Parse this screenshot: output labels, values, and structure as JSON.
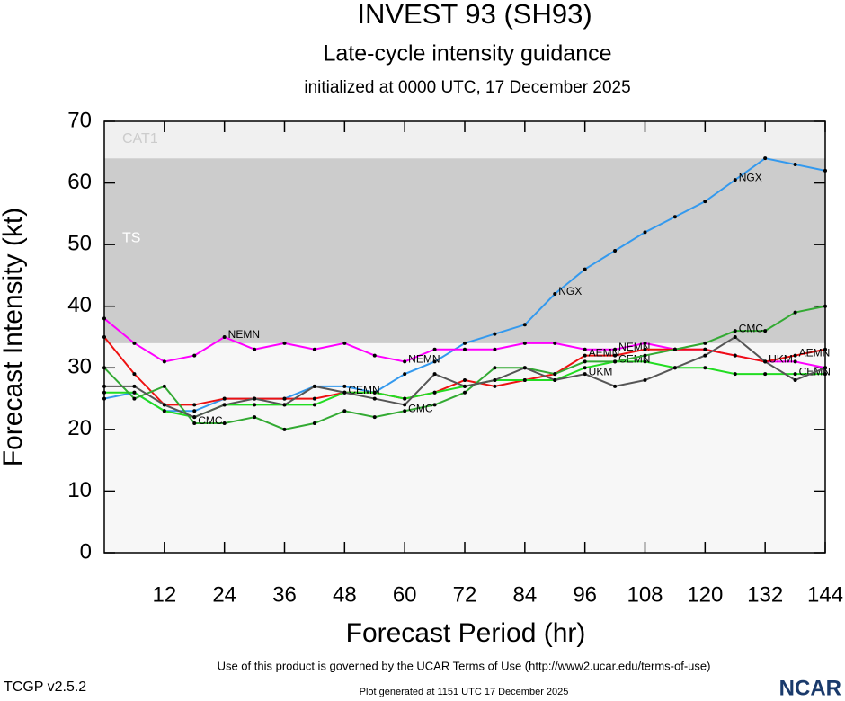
{
  "chart_data": {
    "type": "line",
    "title": "INVEST 93 (SH93)",
    "subtitle": "Late-cycle intensity guidance",
    "initialized": "initialized at 0000 UTC, 17 December 2025",
    "x_label": "Forecast Period (hr)",
    "y_label": "Forecast Intensity (kt)",
    "xlim": [
      0,
      144
    ],
    "ylim": [
      0,
      70
    ],
    "xticks": [
      12,
      24,
      36,
      48,
      60,
      72,
      84,
      96,
      108,
      120,
      132,
      144
    ],
    "yticks": [
      0,
      10,
      20,
      30,
      40,
      50,
      60,
      70
    ],
    "bands": [
      {
        "label": "TS",
        "from": 34,
        "to": 64,
        "color": "#cccccc"
      },
      {
        "label": "CAT1",
        "from": 64,
        "to": 70,
        "color": "#f0f0f0"
      }
    ],
    "x": [
      0,
      6,
      12,
      18,
      24,
      30,
      36,
      42,
      48,
      54,
      60,
      66,
      72,
      78,
      84,
      90,
      96,
      102,
      108,
      114,
      120,
      126,
      132,
      138,
      144
    ],
    "series": [
      {
        "name": "NGX",
        "color": "#3399ee",
        "values": [
          25,
          26,
          23,
          23,
          25,
          25,
          25,
          27,
          27,
          26,
          29,
          31,
          34,
          35.5,
          37,
          42,
          46,
          49,
          52,
          54.5,
          57,
          60.5,
          64,
          63,
          62
        ]
      },
      {
        "name": "NEMN",
        "color": "#ff00ff",
        "values": [
          38,
          34,
          31,
          32,
          35,
          33,
          34,
          33,
          34,
          32,
          31,
          33,
          33,
          33,
          34,
          34,
          33,
          33,
          34,
          33,
          33,
          32,
          31,
          31,
          30
        ]
      },
      {
        "name": "AEMN",
        "color": "#ee1111",
        "values": [
          35,
          29,
          24,
          24,
          25,
          25,
          25,
          25,
          26,
          26,
          25,
          26,
          28,
          27,
          28,
          29,
          32,
          32,
          33,
          33,
          33,
          32,
          31,
          32,
          33
        ]
      },
      {
        "name": "CEMN",
        "color": "#22dd22",
        "values": [
          26,
          26,
          23,
          22,
          24,
          24,
          24,
          24,
          26,
          26,
          25,
          26,
          27,
          28,
          28,
          28,
          30,
          31,
          31,
          30,
          30,
          29,
          29,
          29,
          29
        ]
      },
      {
        "name": "CMC",
        "color": "#33aa33",
        "values": [
          30,
          25,
          27,
          21,
          21,
          22,
          20,
          21,
          23,
          22,
          23,
          24,
          26,
          30,
          30,
          29,
          31,
          31,
          32,
          33,
          34,
          36,
          36,
          39,
          40
        ]
      },
      {
        "name": "UKM",
        "color": "#555555",
        "values": [
          27,
          27,
          24,
          22,
          24,
          25,
          24,
          27,
          26,
          25,
          24,
          29,
          27,
          28,
          30,
          28,
          29,
          27,
          28,
          30,
          32,
          35,
          31,
          28,
          30
        ]
      }
    ],
    "terms": "Use of this product is governed by the UCAR Terms of Use (http://www2.ucar.edu/terms-of-use)",
    "version": "TCGP v2.5.2",
    "generated": "Plot generated at 1151 UTC   17 December 2025",
    "logo": "NCAR"
  }
}
